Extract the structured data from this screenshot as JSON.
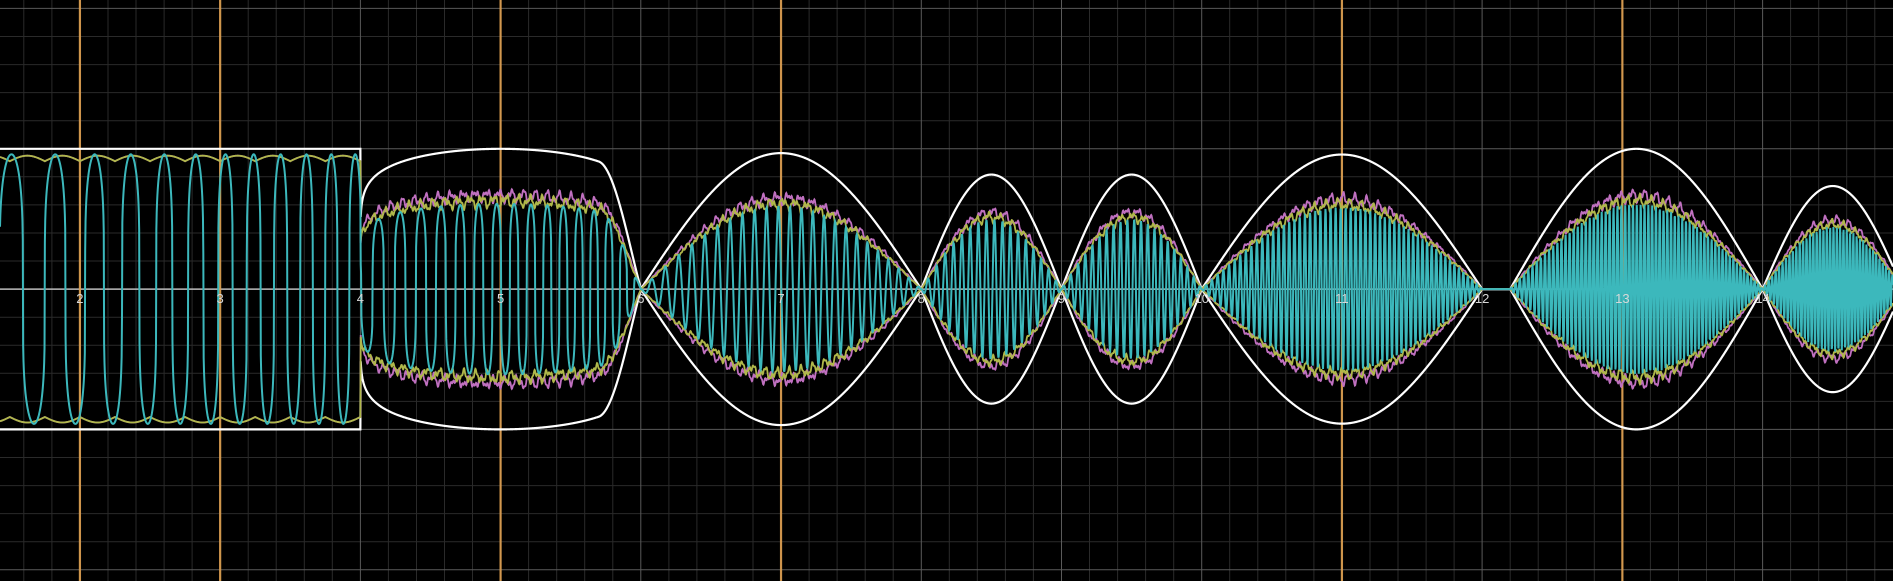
{
  "chart_data": {
    "type": "line",
    "title": "",
    "xlabel": "",
    "ylabel": "",
    "xlim": [
      1.43,
      14.93
    ],
    "ylim": [
      -2.08,
      2.06
    ],
    "grid": {
      "major": true,
      "minor": true,
      "major_step": 1,
      "minor_step": 0.2
    },
    "x_tick_labels": [
      "2",
      "3",
      "4",
      "5",
      "6",
      "7",
      "8",
      "9",
      "10",
      "11",
      "12",
      "13",
      "14"
    ],
    "x_tick_values": [
      2,
      3,
      4,
      5,
      6,
      7,
      8,
      9,
      10,
      11,
      12,
      13,
      14
    ],
    "vertical_markers": [
      2,
      3,
      5,
      7,
      11,
      13
    ],
    "colors": {
      "background": "#000000",
      "grid_major": "#5a5a5a",
      "grid_minor": "#2a2a2a",
      "axis": "#bdbdbd",
      "marker": "#e0a050",
      "envelope": "#ffffff",
      "wave": "#3cb8bc",
      "band_a": "#c070c0",
      "band_b": "#b0b84a"
    },
    "series": [
      {
        "role": "envelope",
        "color": "#ffffff"
      },
      {
        "role": "band_a",
        "color": "#c070c0"
      },
      {
        "role": "band_b",
        "color": "#b0b84a"
      },
      {
        "role": "wave",
        "color": "#3cb8bc"
      }
    ]
  }
}
